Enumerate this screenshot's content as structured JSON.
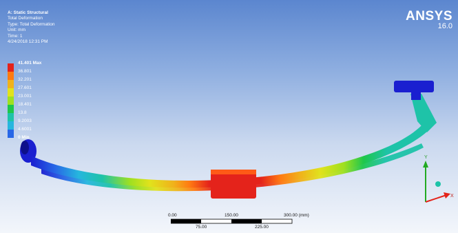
{
  "header": {
    "title": "A: Static Structural",
    "line1": "Total Deformation",
    "line2": "Type: Total Deformation",
    "line3": "Unit: mm",
    "line4": "Time: 1",
    "line5": "4/24/2018 12:31 PM"
  },
  "brand": {
    "name": "ANSYS",
    "version": "16.0"
  },
  "legend": {
    "labels": [
      "41.401 Max",
      "36.801",
      "32.201",
      "27.601",
      "23.001",
      "18.401",
      "13.8",
      "9.2003",
      "4.6001",
      "0 Min"
    ],
    "colors": [
      "#e4231b",
      "#ff7b12",
      "#f0b21b",
      "#e1e21c",
      "#9fe020",
      "#1ec74b",
      "#1ec3a8",
      "#26b6de",
      "#2766e6",
      "#1a1fd0"
    ]
  },
  "scale_bar": {
    "top_labels": [
      "0.00",
      "150.00",
      "300.00 (mm)"
    ],
    "bottom_labels": [
      "75.00",
      "225.00"
    ]
  },
  "triad": {
    "y": "Y",
    "x": "X"
  }
}
